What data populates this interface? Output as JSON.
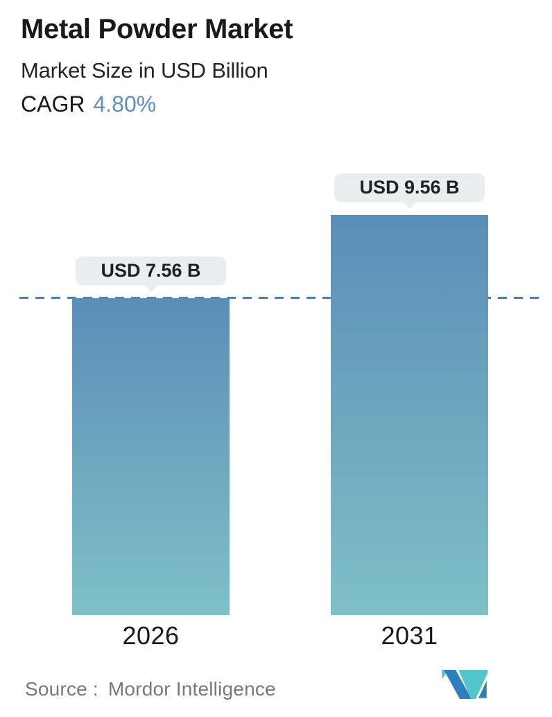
{
  "header": {
    "title": "Metal Powder Market",
    "subtitle": "Market Size in USD Billion",
    "cagr_label": "CAGR",
    "cagr_value": "4.80%"
  },
  "chart_data": {
    "type": "bar",
    "categories": [
      "2026",
      "2031"
    ],
    "values": [
      7.56,
      9.56
    ],
    "value_unit": "USD Billion",
    "bar_labels": [
      "USD 7.56 B",
      "USD 9.56 B"
    ],
    "title": "Metal Powder Market",
    "subtitle": "Market Size in USD Billion",
    "cagr": "4.80%",
    "baseline_value": 7.56,
    "baseline_style": "dashed",
    "grid": false,
    "legend_position": "none",
    "ylim": [
      0,
      9.56
    ]
  },
  "bars": [
    {
      "year": "2026",
      "label": "USD 7.56 B",
      "value": 7.56
    },
    {
      "year": "2031",
      "label": "USD 9.56 B",
      "value": 9.56
    }
  ],
  "footer": {
    "source_label": "Source :",
    "source_name": "Mordor Intelligence"
  },
  "colors": {
    "bar_gradient_top": "#5a8eb8",
    "bar_gradient_bottom": "#7fc0c6",
    "dashed_line": "#4f80aa",
    "bubble_background": "#e9eeef",
    "cagr_accent": "#5e90c0",
    "logo_blue": "#2e7fba",
    "logo_teal": "#52c6cb",
    "source_text": "#76797c"
  }
}
